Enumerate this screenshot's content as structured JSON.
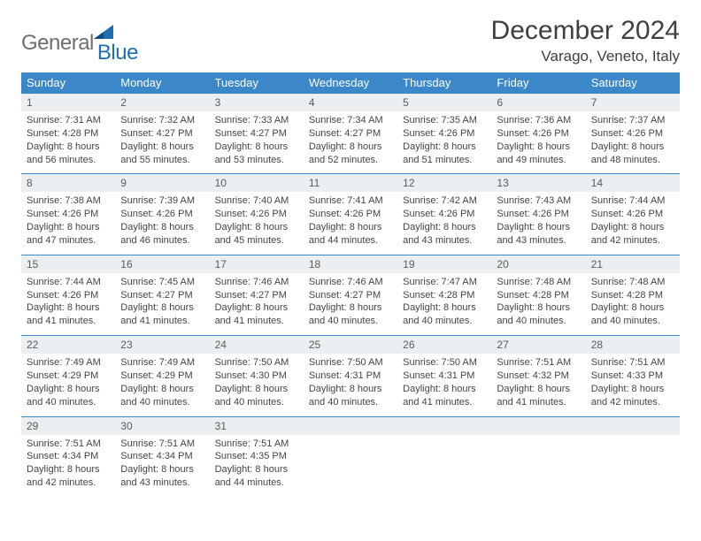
{
  "logo": {
    "text1": "General",
    "text2": "Blue"
  },
  "title": "December 2024",
  "location": "Varago, Veneto, Italy",
  "colors": {
    "header_bg": "#3b87c8",
    "header_text": "#ffffff",
    "daynum_bg": "#eceff1",
    "rule": "#3b87c8",
    "logo_gray": "#6e6e6e",
    "logo_blue": "#1f6fb2"
  },
  "weekdays": [
    "Sunday",
    "Monday",
    "Tuesday",
    "Wednesday",
    "Thursday",
    "Friday",
    "Saturday"
  ],
  "days": [
    {
      "n": "1",
      "sunrise": "7:31 AM",
      "sunset": "4:28 PM",
      "daylight": "8 hours and 56 minutes."
    },
    {
      "n": "2",
      "sunrise": "7:32 AM",
      "sunset": "4:27 PM",
      "daylight": "8 hours and 55 minutes."
    },
    {
      "n": "3",
      "sunrise": "7:33 AM",
      "sunset": "4:27 PM",
      "daylight": "8 hours and 53 minutes."
    },
    {
      "n": "4",
      "sunrise": "7:34 AM",
      "sunset": "4:27 PM",
      "daylight": "8 hours and 52 minutes."
    },
    {
      "n": "5",
      "sunrise": "7:35 AM",
      "sunset": "4:26 PM",
      "daylight": "8 hours and 51 minutes."
    },
    {
      "n": "6",
      "sunrise": "7:36 AM",
      "sunset": "4:26 PM",
      "daylight": "8 hours and 49 minutes."
    },
    {
      "n": "7",
      "sunrise": "7:37 AM",
      "sunset": "4:26 PM",
      "daylight": "8 hours and 48 minutes."
    },
    {
      "n": "8",
      "sunrise": "7:38 AM",
      "sunset": "4:26 PM",
      "daylight": "8 hours and 47 minutes."
    },
    {
      "n": "9",
      "sunrise": "7:39 AM",
      "sunset": "4:26 PM",
      "daylight": "8 hours and 46 minutes."
    },
    {
      "n": "10",
      "sunrise": "7:40 AM",
      "sunset": "4:26 PM",
      "daylight": "8 hours and 45 minutes."
    },
    {
      "n": "11",
      "sunrise": "7:41 AM",
      "sunset": "4:26 PM",
      "daylight": "8 hours and 44 minutes."
    },
    {
      "n": "12",
      "sunrise": "7:42 AM",
      "sunset": "4:26 PM",
      "daylight": "8 hours and 43 minutes."
    },
    {
      "n": "13",
      "sunrise": "7:43 AM",
      "sunset": "4:26 PM",
      "daylight": "8 hours and 43 minutes."
    },
    {
      "n": "14",
      "sunrise": "7:44 AM",
      "sunset": "4:26 PM",
      "daylight": "8 hours and 42 minutes."
    },
    {
      "n": "15",
      "sunrise": "7:44 AM",
      "sunset": "4:26 PM",
      "daylight": "8 hours and 41 minutes."
    },
    {
      "n": "16",
      "sunrise": "7:45 AM",
      "sunset": "4:27 PM",
      "daylight": "8 hours and 41 minutes."
    },
    {
      "n": "17",
      "sunrise": "7:46 AM",
      "sunset": "4:27 PM",
      "daylight": "8 hours and 41 minutes."
    },
    {
      "n": "18",
      "sunrise": "7:46 AM",
      "sunset": "4:27 PM",
      "daylight": "8 hours and 40 minutes."
    },
    {
      "n": "19",
      "sunrise": "7:47 AM",
      "sunset": "4:28 PM",
      "daylight": "8 hours and 40 minutes."
    },
    {
      "n": "20",
      "sunrise": "7:48 AM",
      "sunset": "4:28 PM",
      "daylight": "8 hours and 40 minutes."
    },
    {
      "n": "21",
      "sunrise": "7:48 AM",
      "sunset": "4:28 PM",
      "daylight": "8 hours and 40 minutes."
    },
    {
      "n": "22",
      "sunrise": "7:49 AM",
      "sunset": "4:29 PM",
      "daylight": "8 hours and 40 minutes."
    },
    {
      "n": "23",
      "sunrise": "7:49 AM",
      "sunset": "4:29 PM",
      "daylight": "8 hours and 40 minutes."
    },
    {
      "n": "24",
      "sunrise": "7:50 AM",
      "sunset": "4:30 PM",
      "daylight": "8 hours and 40 minutes."
    },
    {
      "n": "25",
      "sunrise": "7:50 AM",
      "sunset": "4:31 PM",
      "daylight": "8 hours and 40 minutes."
    },
    {
      "n": "26",
      "sunrise": "7:50 AM",
      "sunset": "4:31 PM",
      "daylight": "8 hours and 41 minutes."
    },
    {
      "n": "27",
      "sunrise": "7:51 AM",
      "sunset": "4:32 PM",
      "daylight": "8 hours and 41 minutes."
    },
    {
      "n": "28",
      "sunrise": "7:51 AM",
      "sunset": "4:33 PM",
      "daylight": "8 hours and 42 minutes."
    },
    {
      "n": "29",
      "sunrise": "7:51 AM",
      "sunset": "4:34 PM",
      "daylight": "8 hours and 42 minutes."
    },
    {
      "n": "30",
      "sunrise": "7:51 AM",
      "sunset": "4:34 PM",
      "daylight": "8 hours and 43 minutes."
    },
    {
      "n": "31",
      "sunrise": "7:51 AM",
      "sunset": "4:35 PM",
      "daylight": "8 hours and 44 minutes."
    }
  ],
  "labels": {
    "sunrise": "Sunrise:",
    "sunset": "Sunset:",
    "daylight": "Daylight:"
  }
}
